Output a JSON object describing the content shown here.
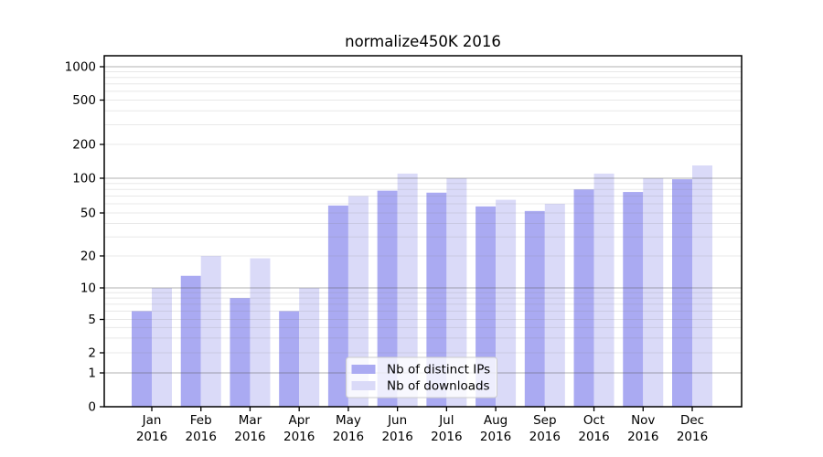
{
  "figure": {
    "title": "normalize450K 2016",
    "background": "#ffffff"
  },
  "chart_data": {
    "type": "bar",
    "title": "normalize450K 2016",
    "categories": [
      "Jan",
      "Feb",
      "Mar",
      "Apr",
      "May",
      "Jun",
      "Jul",
      "Aug",
      "Sep",
      "Oct",
      "Nov",
      "Dec"
    ],
    "category_year": "2016",
    "series": [
      {
        "name": "Nb of distinct IPs",
        "color": "#aaaaf2",
        "values": [
          6,
          13,
          8,
          6,
          58,
          78,
          75,
          57,
          52,
          80,
          76,
          98
        ]
      },
      {
        "name": "Nb of downloads",
        "color": "#dadaf8",
        "values": [
          10,
          20,
          19,
          10,
          70,
          110,
          100,
          65,
          60,
          110,
          100,
          130
        ]
      }
    ],
    "xlabel": "",
    "ylabel": "",
    "yscale": "symlog",
    "y_ticks": [
      0,
      1,
      2,
      5,
      10,
      20,
      50,
      100,
      200,
      500,
      1000
    ],
    "ylim": [
      0,
      1250
    ],
    "grid": true,
    "legend_position": "lower-center",
    "legend_labels": [
      "Nb of distinct IPs",
      "Nb of downloads"
    ],
    "axis_color": "#000000",
    "tick_label_color": "#000000"
  }
}
